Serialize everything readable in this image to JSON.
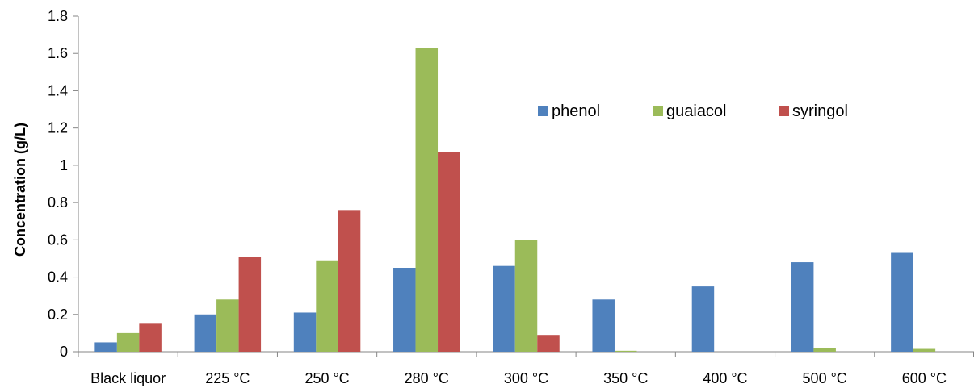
{
  "chart_data": {
    "type": "bar",
    "title": "",
    "xlabel": "",
    "ylabel": "Concentration (g/L)",
    "ylim": [
      0,
      1.8
    ],
    "yticks": [
      "0",
      "0.2",
      "0.4",
      "0.6",
      "0.8",
      "1",
      "1.2",
      "1.4",
      "1.6",
      "1.8"
    ],
    "categories": [
      "Black liquor",
      "225 °C",
      "250 °C",
      "280 °C",
      "300 °C",
      "350 °C",
      "400 °C",
      "500 °C",
      "600 °C"
    ],
    "series": [
      {
        "name": "phenol",
        "color": "#4F81BD",
        "values": [
          0.05,
          0.2,
          0.21,
          0.45,
          0.46,
          0.28,
          0.35,
          0.48,
          0.53
        ]
      },
      {
        "name": "guaiacol",
        "color": "#9BBB59",
        "values": [
          0.1,
          0.28,
          0.49,
          1.63,
          0.6,
          0.005,
          0.0,
          0.02,
          0.015
        ]
      },
      {
        "name": "syringol",
        "color": "#C0504D",
        "values": [
          0.15,
          0.51,
          0.76,
          1.07,
          0.09,
          0.0,
          0.0,
          0.0,
          0.0
        ]
      }
    ],
    "legend_position": "top-right",
    "grid": false
  }
}
